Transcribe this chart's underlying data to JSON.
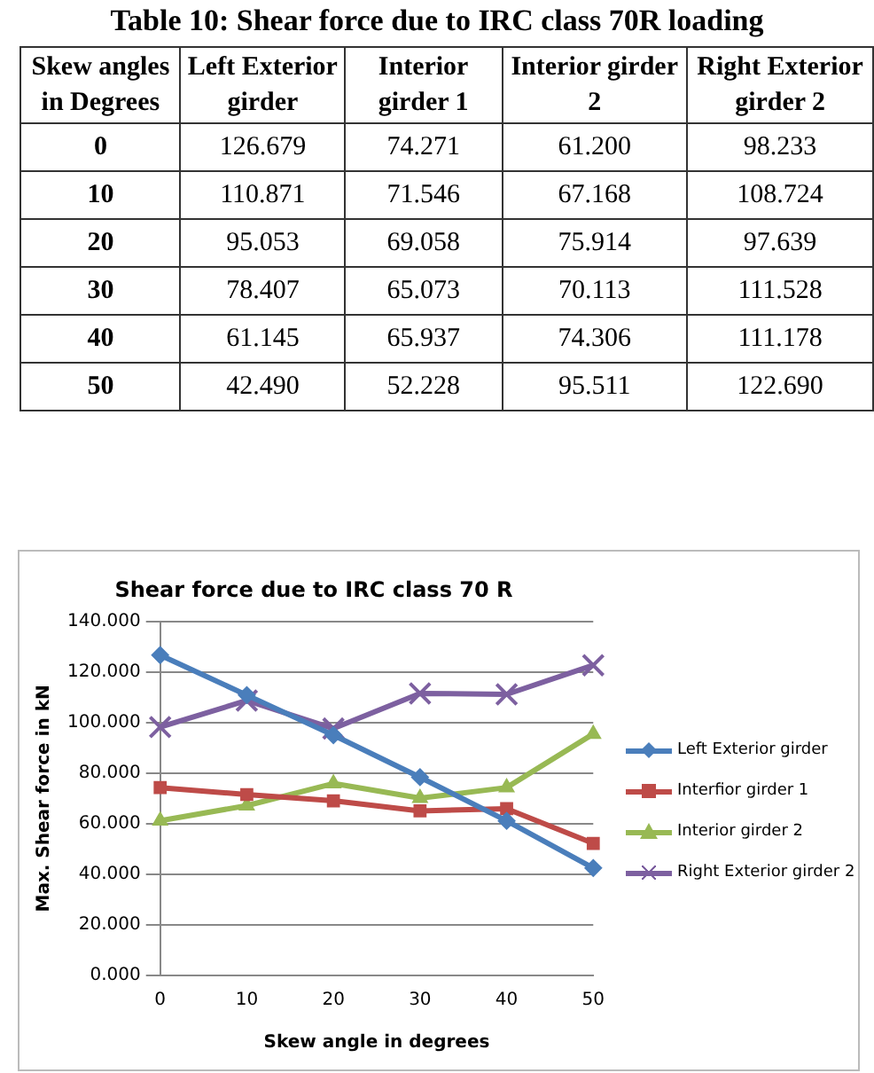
{
  "chart_data": {
    "type": "line",
    "title": "Shear force due to IRC class 70 R",
    "xlabel": "Skew angle in degrees",
    "ylabel": "Max. Shear force in kN",
    "annotations": [
      "Table 10: Shear force due to IRC class 70R loading",
      "Skew angles in Degrees",
      "Left Exterior girder",
      "Interior girder 1",
      "Interior girder 2",
      "Right Exterior girder 2",
      "0",
      "126.679",
      "74.271",
      "61.200",
      "98.233",
      "10",
      "110.871",
      "71.546",
      "67.168",
      "108.724",
      "20",
      "95.053",
      "69.058",
      "75.914",
      "97.639",
      "30",
      "78.407",
      "65.073",
      "70.113",
      "111.528",
      "40",
      "61.145",
      "65.937",
      "74.306",
      "111.178",
      "50",
      "42.490",
      "52.228",
      "95.511",
      "122.690"
    ],
    "categories": [
      "0",
      "10",
      "20",
      "30",
      "40",
      "50"
    ],
    "series": [
      {
        "name": "Left Exterior girder",
        "color": "#4a7ebb",
        "marker": "diamond",
        "values": [
          126.679,
          110.871,
          95.053,
          78.407,
          61.145,
          42.49
        ]
      },
      {
        "name": "Interfior girder 1",
        "color": "#be4b48",
        "marker": "square",
        "values": [
          74.271,
          71.546,
          69.058,
          65.073,
          65.937,
          52.228
        ]
      },
      {
        "name": "Interior girder 2",
        "color": "#98b954",
        "marker": "triangle",
        "values": [
          61.2,
          67.168,
          75.914,
          70.113,
          74.306,
          95.511
        ]
      },
      {
        "name": "Right Exterior girder 2",
        "color": "#7d60a0",
        "marker": "cross",
        "values": [
          98.233,
          108.724,
          97.639,
          111.528,
          111.178,
          122.69
        ]
      }
    ],
    "ylim": [
      0,
      140
    ],
    "yticks": [
      {
        "value": 0,
        "label": "0.000"
      },
      {
        "value": 20,
        "label": "20.000"
      },
      {
        "value": 40,
        "label": "40.000"
      },
      {
        "value": 60,
        "label": "60.000"
      },
      {
        "value": 80,
        "label": "80.000"
      },
      {
        "value": 100,
        "label": "100.000"
      },
      {
        "value": 120,
        "label": "120.000"
      },
      {
        "value": 140,
        "label": "140.000"
      }
    ],
    "grid": "y",
    "legend": "right",
    "line_style": "solid"
  }
}
